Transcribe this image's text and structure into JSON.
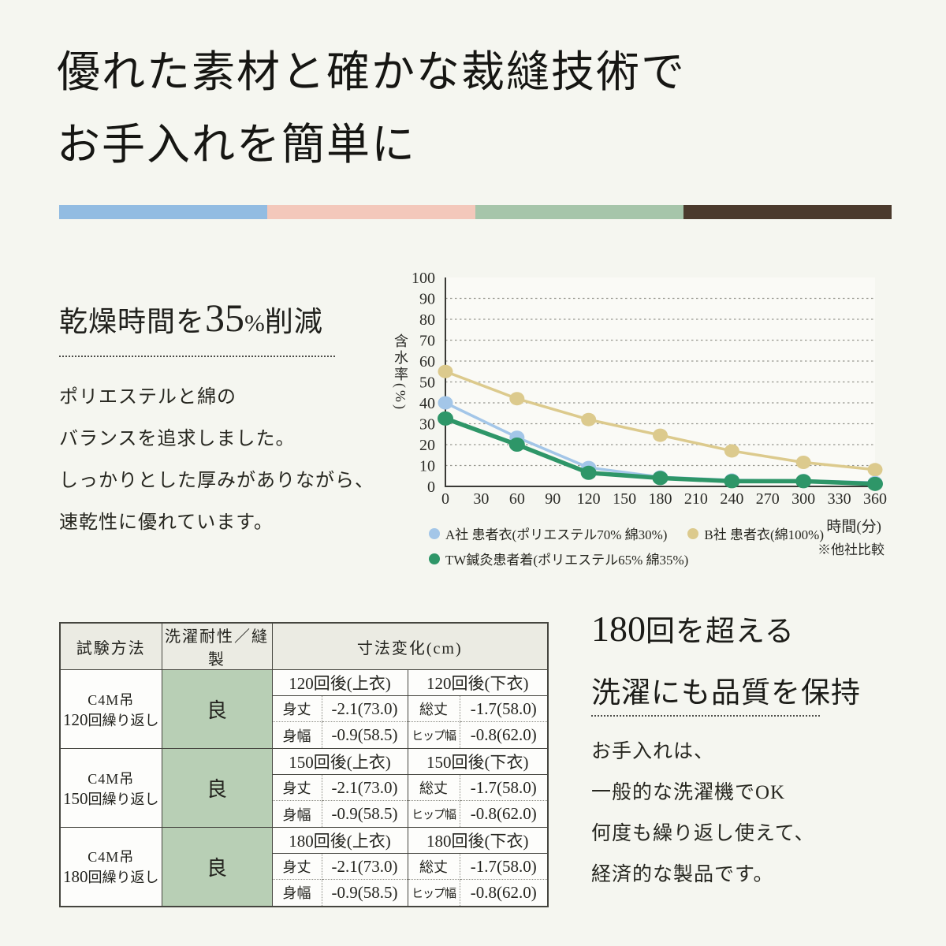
{
  "title": {
    "line1": "優れた素材と確かな裁縫技術で",
    "line2": "お手入れを簡単に"
  },
  "divider": {
    "colors": [
      "#92bce2",
      "#f3c8bb",
      "#a6c5aa",
      "#4b3a2d"
    ]
  },
  "left_feature": {
    "heading": {
      "prefix": "乾燥時間を",
      "number": "35",
      "unit": "%",
      "suffix": "削減"
    },
    "body_lines": [
      "ポリエステルと綿の",
      "バランスを追求しました。",
      "しっかりとした厚みがありながら、",
      "速乾性に優れています。"
    ]
  },
  "chart_data": {
    "type": "line",
    "title": "",
    "xlabel": "時間(分)",
    "ylabel": "含水率(%)",
    "note": "※他社比較",
    "x": [
      0,
      60,
      120,
      180,
      240,
      300,
      360
    ],
    "x_ticks": [
      0,
      30,
      60,
      90,
      120,
      150,
      180,
      210,
      240,
      270,
      300,
      330,
      360
    ],
    "ylim": [
      0,
      100
    ],
    "y_tick_step": 10,
    "grid": "horizontal-dotted",
    "legend_position": "bottom-left",
    "series": [
      {
        "name": "A社 患者衣(ポリエステル70% 綿30%)",
        "color": "#a3c6e8",
        "line_width": 3.5,
        "values": [
          40,
          23.5,
          9,
          4.5,
          3,
          2.8,
          1.8
        ]
      },
      {
        "name": "B社 患者衣(綿100%)",
        "color": "#dcca8d",
        "line_width": 3.5,
        "values": [
          55,
          42,
          32,
          24.5,
          17,
          11.5,
          8
        ]
      },
      {
        "name": "TW鍼灸患者着(ポリエステル65% 綿35%)",
        "color": "#2e9668",
        "line_width": 5.5,
        "values": [
          32.5,
          20,
          6.5,
          4,
          2.5,
          2.5,
          1.2
        ]
      }
    ],
    "legend_rows": [
      [
        0,
        1
      ],
      [
        2
      ]
    ],
    "draw_order": [
      1,
      0,
      2
    ]
  },
  "table": {
    "headers": [
      "試験方法",
      "洗濯耐性／縫製",
      "寸法変化(cm)"
    ],
    "groups": [
      {
        "method_line1": "C4M吊",
        "method_number": "120",
        "method_suffix": "回繰り返し",
        "rating": "良",
        "top_header": "120回後(上衣)",
        "bottom_header": "120回後(下衣)",
        "rows": [
          {
            "top_label": "身丈",
            "top_value": "-2.1(73.0)",
            "bottom_label": "総丈",
            "bottom_value": "-1.7(58.0)"
          },
          {
            "top_label": "身幅",
            "top_value": "-0.9(58.5)",
            "bottom_label": "ヒップ幅",
            "bottom_value": "-0.8(62.0)"
          }
        ]
      },
      {
        "method_line1": "C4M吊",
        "method_number": "150",
        "method_suffix": "回繰り返し",
        "rating": "良",
        "top_header": "150回後(上衣)",
        "bottom_header": "150回後(下衣)",
        "rows": [
          {
            "top_label": "身丈",
            "top_value": "-2.1(73.0)",
            "bottom_label": "総丈",
            "bottom_value": "-1.7(58.0)"
          },
          {
            "top_label": "身幅",
            "top_value": "-0.9(58.5)",
            "bottom_label": "ヒップ幅",
            "bottom_value": "-0.8(62.0)"
          }
        ]
      },
      {
        "method_line1": "C4M吊",
        "method_number": "180",
        "method_suffix": "回繰り返し",
        "rating": "良",
        "top_header": "180回後(上衣)",
        "bottom_header": "180回後(下衣)",
        "rows": [
          {
            "top_label": "身丈",
            "top_value": "-2.1(73.0)",
            "bottom_label": "総丈",
            "bottom_value": "-1.7(58.0)"
          },
          {
            "top_label": "身幅",
            "top_value": "-0.9(58.5)",
            "bottom_label": "ヒップ幅",
            "bottom_value": "-0.8(62.0)"
          }
        ]
      }
    ]
  },
  "right_feature": {
    "heading1": {
      "number": "180",
      "after": "回を超える"
    },
    "heading2": "洗濯にも品質を保持",
    "body_lines": [
      "お手入れは、",
      "一般的な洗濯機でOK",
      "何度も繰り返し使えて、",
      "経済的な製品です。"
    ]
  }
}
